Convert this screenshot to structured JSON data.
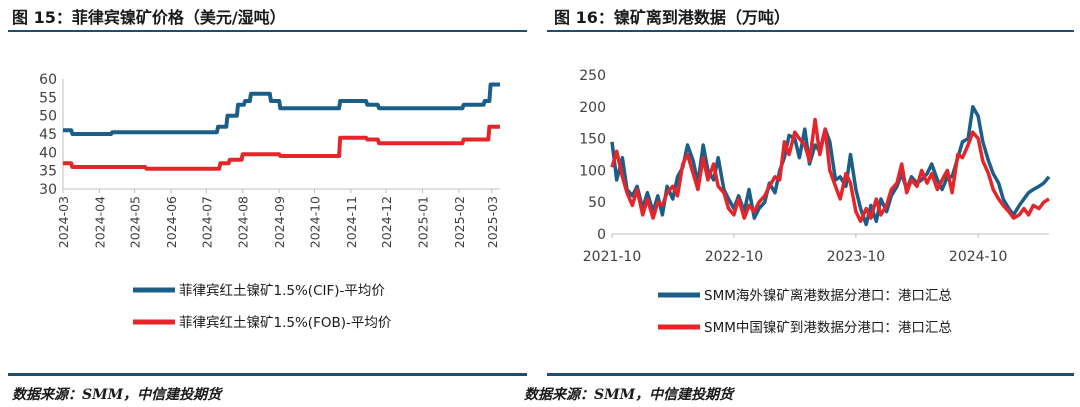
{
  "left_panel": {
    "title": "图 15：菲律宾镍矿价格（美元/湿吨）",
    "source": "数据来源：SMM，中信建投期货"
  },
  "right_panel": {
    "title": "图 16：镍矿离到港数据（万吨）",
    "source": "数据来源：SMM，中信建投期货"
  },
  "colors": {
    "blue": "#1b5e88",
    "red": "#e5252a",
    "rule": "#1b4f72",
    "axis": "#bfbfbf",
    "text": "#404040"
  },
  "chart_data": [
    {
      "type": "line",
      "title": "",
      "xlabel": "",
      "ylabel": "",
      "ylim": [
        30,
        60
      ],
      "yticks": [
        30,
        35,
        40,
        45,
        50,
        55,
        60
      ],
      "xlim": [
        "2024-03-01",
        "2025-03-08"
      ],
      "categories": [
        "2024-03",
        "2024-04",
        "2024-05",
        "2024-06",
        "2024-07",
        "2024-08",
        "2024-09",
        "2024-10",
        "2024-11",
        "2024-12",
        "2025-01",
        "2025-02",
        "2025-03"
      ],
      "legend_position": "bottom",
      "grid": false,
      "series": [
        {
          "name": "菲律宾红土镍矿1.5%(CIF)-平均价",
          "color": "#1b5e88",
          "x": [
            "2024-03-01",
            "2024-03-08",
            "2024-03-09",
            "2024-03-29",
            "2024-04-01",
            "2024-04-11",
            "2024-04-12",
            "2024-07-10",
            "2024-07-11",
            "2024-07-18",
            "2024-07-19",
            "2024-07-27",
            "2024-07-28",
            "2024-08-02",
            "2024-08-03",
            "2024-08-07",
            "2024-08-08",
            "2024-08-24",
            "2024-08-25",
            "2024-09-01",
            "2024-09-02",
            "2024-10-22",
            "2024-10-23",
            "2024-11-14",
            "2024-11-15",
            "2024-11-24",
            "2024-11-25",
            "2025-02-04",
            "2025-02-05",
            "2025-02-22",
            "2025-02-23",
            "2025-02-27",
            "2025-02-28",
            "2025-03-08"
          ],
          "values": [
            46,
            46,
            45,
            45,
            45,
            45,
            45.5,
            45.5,
            47,
            47,
            50,
            50,
            53,
            53,
            54,
            54,
            56,
            56,
            54,
            54,
            52,
            52,
            54,
            54,
            53,
            53,
            52,
            52,
            53,
            53,
            54,
            54,
            58.5,
            58.5
          ]
        },
        {
          "name": "菲律宾红土镍矿1.5%(FOB)-平均价",
          "color": "#e5252a",
          "x": [
            "2024-03-01",
            "2024-03-08",
            "2024-03-09",
            "2024-05-10",
            "2024-05-11",
            "2024-07-12",
            "2024-07-13",
            "2024-07-20",
            "2024-07-21",
            "2024-07-31",
            "2024-08-01",
            "2024-09-01",
            "2024-09-02",
            "2024-10-22",
            "2024-10-23",
            "2024-11-14",
            "2024-11-15",
            "2024-11-24",
            "2024-11-25",
            "2025-02-04",
            "2025-02-05",
            "2025-02-26",
            "2025-02-27",
            "2025-03-08"
          ],
          "values": [
            37,
            37,
            36,
            36,
            35.5,
            35.5,
            37,
            37,
            38,
            38,
            39.5,
            39.5,
            39,
            39,
            44,
            44,
            43.5,
            43.5,
            42.5,
            42.5,
            43.5,
            43.5,
            47,
            47
          ]
        }
      ]
    },
    {
      "type": "line",
      "title": "",
      "xlabel": "",
      "ylabel": "",
      "ylim": [
        0,
        250
      ],
      "yticks": [
        0,
        50,
        100,
        150,
        200,
        250
      ],
      "xlim": [
        "2021-10-01",
        "2025-05-01"
      ],
      "xticks": [
        "2021-10-01",
        "2022-10-01",
        "2023-10-01",
        "2024-10-01"
      ],
      "xtick_labels": [
        "2021-10",
        "2022-10",
        "2023-10",
        "2024-10"
      ],
      "legend_position": "bottom",
      "grid": false,
      "series": [
        {
          "name": "SMM海外镍矿离港数据分港口：港口汇总",
          "color": "#1b5e88",
          "x": [
            "2021-10-01",
            "2021-10-15",
            "2021-11-01",
            "2021-11-15",
            "2021-12-01",
            "2021-12-15",
            "2022-01-01",
            "2022-01-15",
            "2022-02-01",
            "2022-02-15",
            "2022-03-01",
            "2022-03-15",
            "2022-04-01",
            "2022-04-15",
            "2022-05-01",
            "2022-05-15",
            "2022-06-01",
            "2022-06-15",
            "2022-07-01",
            "2022-07-15",
            "2022-08-01",
            "2022-08-15",
            "2022-09-01",
            "2022-09-15",
            "2022-10-01",
            "2022-10-15",
            "2022-11-01",
            "2022-11-15",
            "2022-12-01",
            "2022-12-15",
            "2023-01-01",
            "2023-01-15",
            "2023-02-01",
            "2023-02-15",
            "2023-03-01",
            "2023-03-15",
            "2023-04-01",
            "2023-04-15",
            "2023-05-01",
            "2023-05-15",
            "2023-06-01",
            "2023-06-15",
            "2023-07-01",
            "2023-07-15",
            "2023-08-01",
            "2023-08-15",
            "2023-09-01",
            "2023-09-15",
            "2023-10-01",
            "2023-10-15",
            "2023-11-01",
            "2023-11-15",
            "2023-12-01",
            "2023-12-15",
            "2024-01-01",
            "2024-01-15",
            "2024-02-01",
            "2024-02-15",
            "2024-03-01",
            "2024-03-15",
            "2024-04-01",
            "2024-04-15",
            "2024-05-01",
            "2024-05-15",
            "2024-06-01",
            "2024-06-15",
            "2024-07-01",
            "2024-07-15",
            "2024-08-01",
            "2024-08-15",
            "2024-09-01",
            "2024-09-15",
            "2024-10-01",
            "2024-10-15",
            "2024-11-01",
            "2024-11-15",
            "2024-12-01",
            "2024-12-15",
            "2025-01-01",
            "2025-01-15",
            "2025-02-01",
            "2025-02-15",
            "2025-03-01",
            "2025-03-15",
            "2025-04-01",
            "2025-04-15",
            "2025-05-01"
          ],
          "values": [
            145,
            85,
            120,
            70,
            60,
            75,
            40,
            65,
            35,
            60,
            30,
            75,
            55,
            90,
            105,
            140,
            115,
            80,
            140,
            100,
            85,
            120,
            70,
            55,
            40,
            60,
            35,
            70,
            25,
            40,
            50,
            80,
            65,
            100,
            120,
            155,
            150,
            120,
            165,
            110,
            140,
            130,
            165,
            145,
            85,
            90,
            75,
            125,
            70,
            40,
            15,
            45,
            20,
            55,
            35,
            60,
            75,
            95,
            70,
            90,
            80,
            85,
            95,
            110,
            85,
            70,
            90,
            90,
            120,
            145,
            150,
            200,
            185,
            145,
            115,
            95,
            80,
            55,
            40,
            30,
            45,
            55,
            65,
            70,
            75,
            80,
            90
          ]
        },
        {
          "name": "SMM中国镍矿到港数据分港口：港口汇总",
          "color": "#e5252a",
          "x": [
            "2021-10-01",
            "2021-10-15",
            "2021-11-01",
            "2021-11-15",
            "2021-12-01",
            "2021-12-15",
            "2022-01-01",
            "2022-01-15",
            "2022-02-01",
            "2022-02-15",
            "2022-03-01",
            "2022-03-15",
            "2022-04-01",
            "2022-04-15",
            "2022-05-01",
            "2022-05-15",
            "2022-06-01",
            "2022-06-15",
            "2022-07-01",
            "2022-07-15",
            "2022-08-01",
            "2022-08-15",
            "2022-09-01",
            "2022-09-15",
            "2022-10-01",
            "2022-10-15",
            "2022-11-01",
            "2022-11-15",
            "2022-12-01",
            "2022-12-15",
            "2023-01-01",
            "2023-01-15",
            "2023-02-01",
            "2023-02-15",
            "2023-03-01",
            "2023-03-15",
            "2023-04-01",
            "2023-04-15",
            "2023-05-01",
            "2023-05-15",
            "2023-06-01",
            "2023-06-15",
            "2023-07-01",
            "2023-07-15",
            "2023-08-01",
            "2023-08-15",
            "2023-09-01",
            "2023-09-15",
            "2023-10-01",
            "2023-10-15",
            "2023-11-01",
            "2023-11-15",
            "2023-12-01",
            "2023-12-15",
            "2024-01-01",
            "2024-01-15",
            "2024-02-01",
            "2024-02-15",
            "2024-03-01",
            "2024-03-15",
            "2024-04-01",
            "2024-04-15",
            "2024-05-01",
            "2024-05-15",
            "2024-06-01",
            "2024-06-15",
            "2024-07-01",
            "2024-07-15",
            "2024-08-01",
            "2024-08-15",
            "2024-09-01",
            "2024-09-15",
            "2024-10-01",
            "2024-10-15",
            "2024-11-01",
            "2024-11-15",
            "2024-12-01",
            "2024-12-15",
            "2025-01-01",
            "2025-01-15",
            "2025-02-01",
            "2025-02-15",
            "2025-03-01",
            "2025-03-15",
            "2025-04-01",
            "2025-04-15",
            "2025-05-01"
          ],
          "values": [
            105,
            130,
            90,
            65,
            45,
            70,
            30,
            55,
            25,
            50,
            45,
            65,
            75,
            60,
            110,
            125,
            95,
            70,
            120,
            85,
            110,
            75,
            65,
            40,
            30,
            55,
            25,
            45,
            35,
            50,
            60,
            75,
            90,
            85,
            145,
            125,
            160,
            150,
            140,
            115,
            180,
            125,
            165,
            100,
            75,
            55,
            95,
            80,
            35,
            20,
            40,
            25,
            55,
            30,
            45,
            70,
            80,
            110,
            65,
            85,
            75,
            100,
            80,
            95,
            70,
            85,
            100,
            65,
            125,
            120,
            140,
            160,
            150,
            115,
            95,
            70,
            55,
            45,
            35,
            25,
            30,
            40,
            30,
            45,
            40,
            50,
            55
          ]
        }
      ]
    }
  ]
}
